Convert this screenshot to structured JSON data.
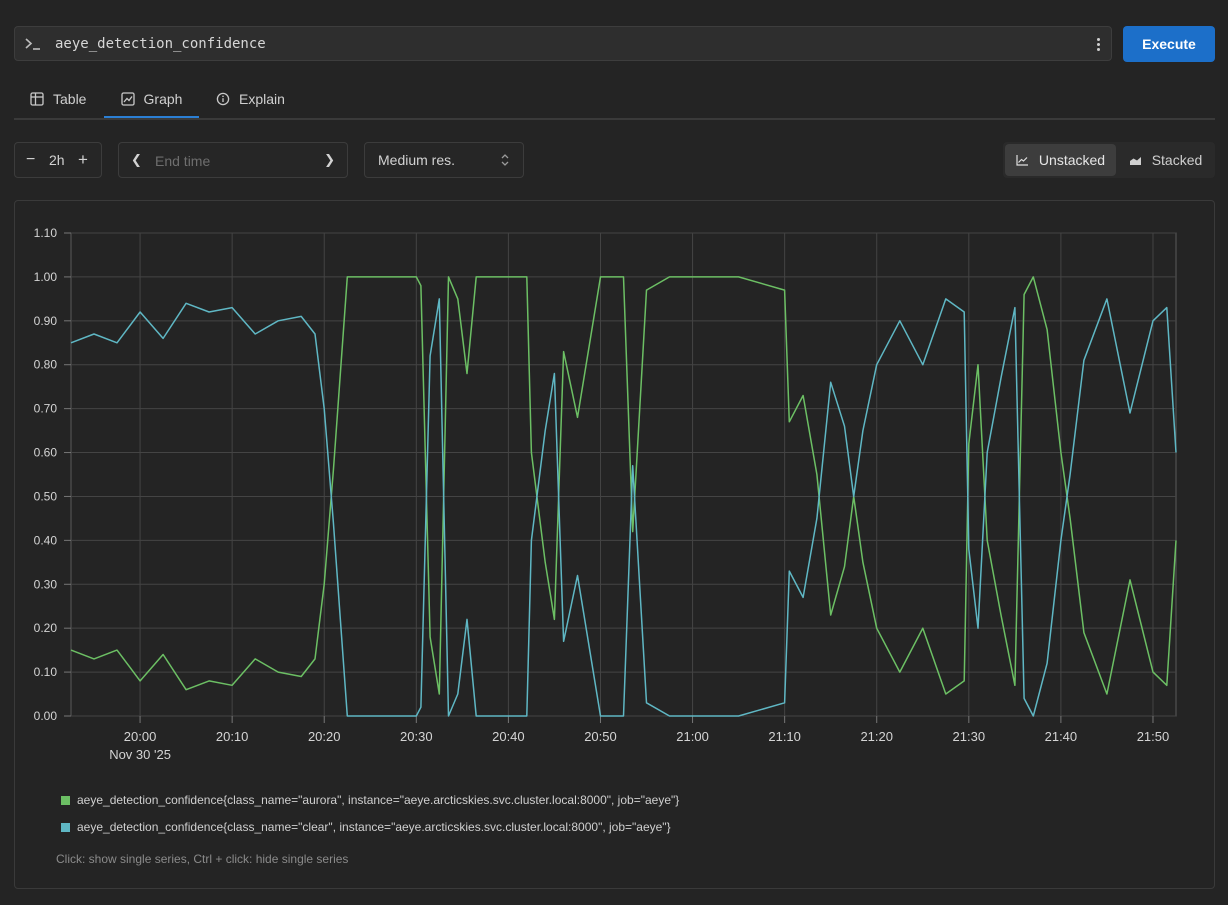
{
  "query": {
    "text": "aeye_detection_confidence",
    "execute_label": "Execute"
  },
  "tabs": [
    {
      "label": "Table",
      "icon": "table-icon"
    },
    {
      "label": "Graph",
      "icon": "graph-icon",
      "active": true
    },
    {
      "label": "Explain",
      "icon": "info-icon"
    }
  ],
  "controls": {
    "range_value": "2h",
    "end_time_placeholder": "End time",
    "resolution_label": "Medium res.",
    "unstacked_label": "Unstacked",
    "stacked_label": "Stacked",
    "selected_mode": "unstacked"
  },
  "colors": {
    "accent": "#1c6fc9",
    "aurora": "#6cbf64",
    "clear": "#5fb7c4"
  },
  "chart_data": {
    "type": "line",
    "x_tick_labels": [
      "20:00",
      "20:10",
      "20:20",
      "20:30",
      "20:40",
      "20:50",
      "21:00",
      "21:10",
      "21:20",
      "21:30",
      "21:40",
      "21:50"
    ],
    "x_date_label": "Nov 30 '25",
    "x_range": [
      "19:52:30",
      "21:52:30"
    ],
    "y_tick_labels": [
      "0.00",
      "0.10",
      "0.20",
      "0.30",
      "0.40",
      "0.50",
      "0.60",
      "0.70",
      "0.80",
      "0.90",
      "1.00",
      "1.10"
    ],
    "ylim": [
      0,
      1.1
    ],
    "grid": true,
    "legend_placement": "bottom",
    "series": [
      {
        "name": "aeye_detection_confidence{class_name=\"aurora\", instance=\"aeye.arcticskies.svc.cluster.local:8000\", job=\"aeye\"}",
        "color": "#6cbf64",
        "x": [
          "19:52:30",
          "19:55:00",
          "19:57:30",
          "20:00:00",
          "20:02:30",
          "20:05:00",
          "20:07:30",
          "20:10:00",
          "20:12:30",
          "20:15:00",
          "20:17:30",
          "20:19:00",
          "20:20:00",
          "20:21:00",
          "20:22:30",
          "20:25:00",
          "20:27:30",
          "20:30:00",
          "20:30:30",
          "20:31:30",
          "20:32:30",
          "20:33:30",
          "20:34:30",
          "20:35:30",
          "20:36:30",
          "20:38:00",
          "20:40:00",
          "20:42:00",
          "20:42:30",
          "20:44:00",
          "20:45:00",
          "20:46:00",
          "20:47:30",
          "20:50:00",
          "20:52:30",
          "20:53:30",
          "20:55:00",
          "20:57:30",
          "21:00:00",
          "21:05:00",
          "21:10:00",
          "21:10:30",
          "21:12:00",
          "21:13:30",
          "21:15:00",
          "21:16:30",
          "21:17:30",
          "21:18:30",
          "21:20:00",
          "21:22:30",
          "21:25:00",
          "21:27:30",
          "21:29:30",
          "21:30:00",
          "21:31:00",
          "21:32:00",
          "21:33:30",
          "21:35:00",
          "21:36:00",
          "21:37:00",
          "21:38:30",
          "21:40:00",
          "21:41:00",
          "21:42:30",
          "21:45:00",
          "21:47:30",
          "21:50:00",
          "21:51:30",
          "21:52:30"
        ],
        "y": [
          0.15,
          0.13,
          0.15,
          0.08,
          0.14,
          0.06,
          0.08,
          0.07,
          0.13,
          0.1,
          0.09,
          0.13,
          0.3,
          0.56,
          1.0,
          1.0,
          1.0,
          1.0,
          0.98,
          0.18,
          0.05,
          1.0,
          0.95,
          0.78,
          1.0,
          1.0,
          1.0,
          1.0,
          0.6,
          0.35,
          0.22,
          0.83,
          0.68,
          1.0,
          1.0,
          0.42,
          0.97,
          1.0,
          1.0,
          1.0,
          0.97,
          0.67,
          0.73,
          0.55,
          0.23,
          0.34,
          0.5,
          0.35,
          0.2,
          0.1,
          0.2,
          0.05,
          0.08,
          0.62,
          0.8,
          0.4,
          0.23,
          0.07,
          0.96,
          1.0,
          0.88,
          0.6,
          0.45,
          0.19,
          0.05,
          0.31,
          0.1,
          0.07,
          0.4
        ]
      },
      {
        "name": "aeye_detection_confidence{class_name=\"clear\", instance=\"aeye.arcticskies.svc.cluster.local:8000\", job=\"aeye\"}",
        "color": "#5fb7c4",
        "x": [
          "19:52:30",
          "19:55:00",
          "19:57:30",
          "20:00:00",
          "20:02:30",
          "20:05:00",
          "20:07:30",
          "20:10:00",
          "20:12:30",
          "20:15:00",
          "20:17:30",
          "20:19:00",
          "20:20:00",
          "20:21:00",
          "20:22:30",
          "20:25:00",
          "20:27:30",
          "20:30:00",
          "20:30:30",
          "20:31:30",
          "20:32:30",
          "20:33:30",
          "20:34:30",
          "20:35:30",
          "20:36:30",
          "20:38:00",
          "20:40:00",
          "20:42:00",
          "20:42:30",
          "20:44:00",
          "20:45:00",
          "20:46:00",
          "20:47:30",
          "20:50:00",
          "20:52:30",
          "20:53:30",
          "20:55:00",
          "20:57:30",
          "21:00:00",
          "21:05:00",
          "21:10:00",
          "21:10:30",
          "21:12:00",
          "21:13:30",
          "21:15:00",
          "21:16:30",
          "21:17:30",
          "21:18:30",
          "21:20:00",
          "21:22:30",
          "21:25:00",
          "21:27:30",
          "21:29:30",
          "21:30:00",
          "21:31:00",
          "21:32:00",
          "21:33:30",
          "21:35:00",
          "21:36:00",
          "21:37:00",
          "21:38:30",
          "21:40:00",
          "21:41:00",
          "21:42:30",
          "21:45:00",
          "21:47:30",
          "21:50:00",
          "21:51:30",
          "21:52:30"
        ],
        "y": [
          0.85,
          0.87,
          0.85,
          0.92,
          0.86,
          0.94,
          0.92,
          0.93,
          0.87,
          0.9,
          0.91,
          0.87,
          0.7,
          0.44,
          0.0,
          0.0,
          0.0,
          0.0,
          0.02,
          0.82,
          0.95,
          0.0,
          0.05,
          0.22,
          0.0,
          0.0,
          0.0,
          0.0,
          0.4,
          0.65,
          0.78,
          0.17,
          0.32,
          0.0,
          0.0,
          0.57,
          0.03,
          0.0,
          0.0,
          0.0,
          0.03,
          0.33,
          0.27,
          0.45,
          0.76,
          0.66,
          0.5,
          0.65,
          0.8,
          0.9,
          0.8,
          0.95,
          0.92,
          0.38,
          0.2,
          0.6,
          0.77,
          0.93,
          0.04,
          0.0,
          0.12,
          0.4,
          0.55,
          0.81,
          0.95,
          0.69,
          0.9,
          0.93,
          0.6
        ]
      }
    ]
  },
  "legend_hint": "Click: show single series, Ctrl + click: hide single series"
}
